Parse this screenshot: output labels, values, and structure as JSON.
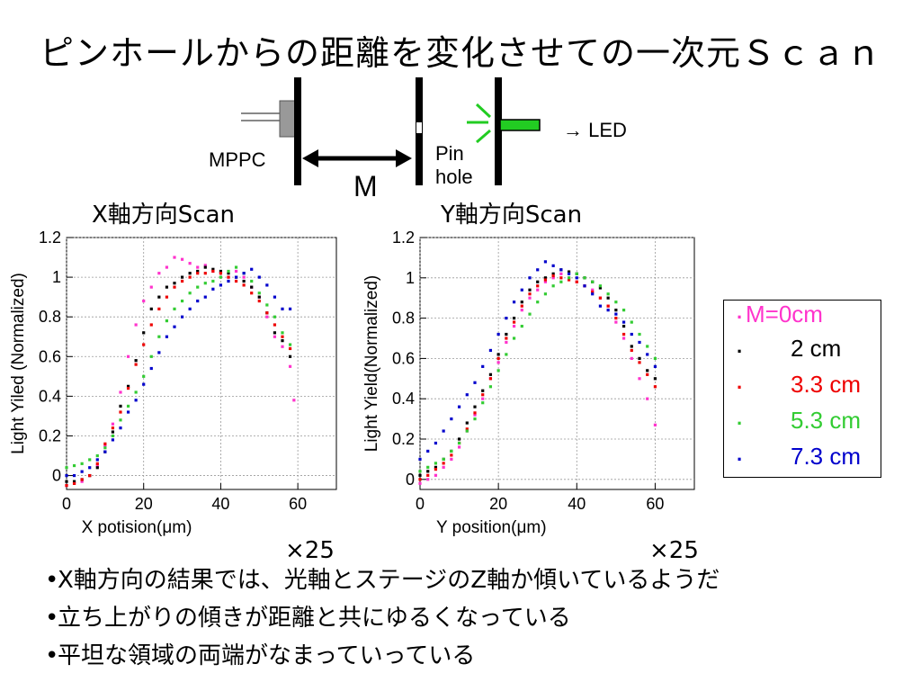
{
  "title": "ピンホールからの距離を変化させての一次元Ｓｃａｎ",
  "diagram": {
    "mppc_label": "MPPC",
    "distance_label": "M",
    "pinhole_label_1": "Pin",
    "pinhole_label_2": "hole",
    "led_label": "→ LED",
    "led_color": "#22cc22"
  },
  "legend": {
    "items": [
      {
        "label": "M=0cm",
        "color": "#ff33cc"
      },
      {
        "label": "2 cm",
        "color": "#000000"
      },
      {
        "label": "3.3 cm",
        "color": "#ee0000"
      },
      {
        "label": "5.3 cm",
        "color": "#33cc33"
      },
      {
        "label": "7.3 cm",
        "color": "#0000cc"
      }
    ]
  },
  "multiplier": "×25",
  "bullets": [
    "X軸方向の結果では、光軸とステージのZ軸か傾いているようだ",
    "立ち上がりの傾きが距離と共にゆるくなっている",
    "平坦な領域の両端がなまっていっている"
  ],
  "chart_data": [
    {
      "type": "scatter",
      "title": "X軸方向Scan",
      "xlabel": "X potision(μm)",
      "ylabel": "Light Yiled (Normalized)",
      "xlim": [
        0,
        70
      ],
      "ylim": [
        -0.07,
        1.2
      ],
      "xticks": [
        0,
        20,
        40,
        60
      ],
      "yticks": [
        0,
        0.2,
        0.4,
        0.6,
        0.8,
        1,
        1.2
      ],
      "ytick_labels": [
        "0",
        "0.2",
        "0.4",
        "0.6",
        "0.8",
        "1",
        "1.2"
      ],
      "grid": true,
      "series": [
        {
          "name": "M=0cm",
          "color": "#ff33cc",
          "x": [
            0,
            2,
            4,
            6,
            8,
            10,
            12,
            14,
            16,
            18,
            20,
            22,
            24,
            26,
            28,
            30,
            32,
            34,
            36,
            38,
            40,
            42,
            44,
            46,
            48,
            50,
            52,
            54,
            56,
            58,
            59
          ],
          "y": [
            -0.05,
            -0.04,
            -0.03,
            0.0,
            0.05,
            0.15,
            0.26,
            0.42,
            0.6,
            0.76,
            0.88,
            0.95,
            1.02,
            1.05,
            1.1,
            1.09,
            1.07,
            1.05,
            1.06,
            1.03,
            1.02,
            1.0,
            1.03,
            1.0,
            0.95,
            0.9,
            0.8,
            0.7,
            0.65,
            0.55,
            0.38
          ]
        },
        {
          "name": "2 cm",
          "color": "#000000",
          "x": [
            0,
            2,
            4,
            6,
            8,
            10,
            12,
            14,
            16,
            18,
            20,
            22,
            24,
            26,
            28,
            30,
            32,
            34,
            36,
            38,
            40,
            42,
            44,
            46,
            48,
            50,
            52,
            54,
            56,
            58
          ],
          "y": [
            -0.03,
            -0.03,
            -0.02,
            0.0,
            0.04,
            0.12,
            0.22,
            0.35,
            0.45,
            0.58,
            0.72,
            0.84,
            0.9,
            0.95,
            0.97,
            1.0,
            1.02,
            1.03,
            1.05,
            1.04,
            1.03,
            1.02,
            1.0,
            0.98,
            0.95,
            0.9,
            0.82,
            0.72,
            0.68,
            0.6
          ]
        },
        {
          "name": "3.3 cm",
          "color": "#ee0000",
          "x": [
            0,
            2,
            4,
            6,
            8,
            10,
            12,
            14,
            16,
            18,
            20,
            22,
            24,
            26,
            28,
            30,
            32,
            34,
            36,
            38,
            40,
            42,
            44,
            46,
            48,
            50,
            52,
            54,
            56,
            58
          ],
          "y": [
            -0.05,
            -0.04,
            -0.02,
            0.0,
            0.06,
            0.16,
            0.24,
            0.32,
            0.44,
            0.56,
            0.66,
            0.76,
            0.84,
            0.9,
            0.95,
            0.98,
            1.0,
            1.02,
            1.02,
            1.03,
            1.02,
            1.0,
            0.98,
            0.96,
            0.92,
            0.88,
            0.82,
            0.76,
            0.7,
            0.64
          ]
        },
        {
          "name": "5.3 cm",
          "color": "#33cc33",
          "x": [
            0,
            2,
            4,
            6,
            8,
            10,
            12,
            14,
            16,
            18,
            20,
            22,
            24,
            26,
            28,
            30,
            32,
            34,
            36,
            38,
            40,
            42,
            44,
            46,
            48,
            50,
            52,
            54,
            56,
            58
          ],
          "y": [
            0.04,
            0.05,
            0.06,
            0.08,
            0.1,
            0.14,
            0.2,
            0.28,
            0.35,
            0.42,
            0.5,
            0.6,
            0.7,
            0.78,
            0.84,
            0.88,
            0.92,
            0.95,
            0.97,
            0.98,
            1.0,
            1.03,
            1.05,
            1.02,
            0.98,
            0.92,
            0.86,
            0.8,
            0.72,
            0.66
          ]
        },
        {
          "name": "7.3 cm",
          "color": "#0000cc",
          "x": [
            0,
            2,
            4,
            6,
            8,
            10,
            12,
            14,
            16,
            18,
            20,
            22,
            24,
            26,
            28,
            30,
            32,
            34,
            36,
            38,
            40,
            42,
            44,
            46,
            48,
            50,
            52,
            54,
            56,
            58
          ],
          "y": [
            0.0,
            0.0,
            0.02,
            0.04,
            0.08,
            0.12,
            0.18,
            0.24,
            0.32,
            0.38,
            0.46,
            0.54,
            0.62,
            0.7,
            0.75,
            0.8,
            0.84,
            0.88,
            0.9,
            0.94,
            0.96,
            0.98,
            1.0,
            1.02,
            1.04,
            1.0,
            0.96,
            0.9,
            0.84,
            0.84
          ]
        }
      ]
    },
    {
      "type": "scatter",
      "title": "Y軸方向Scan",
      "xlabel": "Y position(μm)",
      "ylabel": "Light Yield(Normalized)",
      "xlim": [
        0,
        70
      ],
      "ylim": [
        -0.05,
        1.2
      ],
      "xticks": [
        0,
        20,
        40,
        60
      ],
      "yticks": [
        0,
        0.2,
        0.4,
        0.6,
        0.8,
        1,
        1.2
      ],
      "ytick_labels": [
        "0",
        "0.2",
        "0.4",
        "0.6",
        "0.8",
        "1",
        "1.2"
      ],
      "grid": true,
      "series": [
        {
          "name": "M=0cm",
          "color": "#ff33cc",
          "x": [
            0,
            2,
            4,
            6,
            8,
            10,
            12,
            14,
            16,
            18,
            20,
            22,
            24,
            26,
            28,
            30,
            32,
            34,
            36,
            38,
            40,
            42,
            44,
            46,
            48,
            50,
            52,
            54,
            56,
            58,
            60
          ],
          "y": [
            -0.02,
            0.0,
            0.02,
            0.06,
            0.1,
            0.16,
            0.24,
            0.32,
            0.4,
            0.5,
            0.58,
            0.68,
            0.76,
            0.84,
            0.9,
            0.94,
            0.98,
            1.0,
            1.02,
            1.0,
            0.98,
            0.96,
            0.94,
            0.9,
            0.86,
            0.78,
            0.7,
            0.6,
            0.5,
            0.4,
            0.27
          ]
        },
        {
          "name": "2 cm",
          "color": "#000000",
          "x": [
            0,
            2,
            4,
            6,
            8,
            10,
            12,
            14,
            16,
            18,
            20,
            22,
            24,
            26,
            28,
            30,
            32,
            34,
            36,
            38,
            40,
            42,
            44,
            46,
            48,
            50,
            52,
            54,
            56,
            58,
            60
          ],
          "y": [
            0.02,
            0.04,
            0.06,
            0.1,
            0.14,
            0.2,
            0.28,
            0.36,
            0.44,
            0.52,
            0.62,
            0.72,
            0.8,
            0.88,
            0.94,
            0.98,
            1.0,
            1.02,
            1.04,
            1.03,
            1.02,
            1.0,
            0.98,
            0.95,
            0.9,
            0.84,
            0.76,
            0.66,
            0.6,
            0.54,
            0.5
          ]
        },
        {
          "name": "3.3 cm",
          "color": "#ee0000",
          "x": [
            0,
            2,
            4,
            6,
            8,
            10,
            12,
            14,
            16,
            18,
            20,
            22,
            24,
            26,
            28,
            30,
            32,
            34,
            36,
            38,
            40,
            42,
            44,
            46,
            48,
            50,
            52,
            54,
            56,
            58,
            60
          ],
          "y": [
            0.0,
            0.02,
            0.05,
            0.08,
            0.12,
            0.18,
            0.25,
            0.33,
            0.42,
            0.5,
            0.6,
            0.7,
            0.78,
            0.86,
            0.92,
            0.96,
            0.99,
            1.01,
            1.0,
            0.99,
            0.98,
            0.96,
            0.93,
            0.9,
            0.86,
            0.8,
            0.72,
            0.64,
            0.58,
            0.52,
            0.46
          ]
        },
        {
          "name": "5.3 cm",
          "color": "#33cc33",
          "x": [
            0,
            2,
            4,
            6,
            8,
            10,
            12,
            14,
            16,
            18,
            20,
            22,
            24,
            26,
            28,
            30,
            32,
            34,
            36,
            38,
            40,
            42,
            44,
            46,
            48,
            50,
            52,
            54,
            56,
            58,
            60
          ],
          "y": [
            0.04,
            0.06,
            0.08,
            0.1,
            0.14,
            0.18,
            0.24,
            0.3,
            0.38,
            0.46,
            0.54,
            0.62,
            0.7,
            0.76,
            0.82,
            0.88,
            0.92,
            0.96,
            0.98,
            1.0,
            1.02,
            1.0,
            0.98,
            0.96,
            0.92,
            0.88,
            0.84,
            0.78,
            0.72,
            0.66,
            0.6
          ]
        },
        {
          "name": "7.3 cm",
          "color": "#0000cc",
          "x": [
            0,
            2,
            4,
            6,
            8,
            10,
            12,
            14,
            16,
            18,
            20,
            22,
            24,
            26,
            28,
            30,
            32,
            34,
            36,
            38,
            40,
            42,
            44,
            46,
            48,
            50,
            52,
            54,
            56,
            58,
            60
          ],
          "y": [
            0.1,
            0.14,
            0.18,
            0.24,
            0.3,
            0.36,
            0.42,
            0.48,
            0.56,
            0.64,
            0.72,
            0.8,
            0.88,
            0.94,
            1.0,
            1.04,
            1.08,
            1.06,
            1.04,
            1.02,
            1.0,
            0.96,
            0.92,
            0.86,
            0.84,
            0.82,
            0.78,
            0.72,
            0.68,
            0.62,
            0.56
          ]
        }
      ]
    }
  ]
}
